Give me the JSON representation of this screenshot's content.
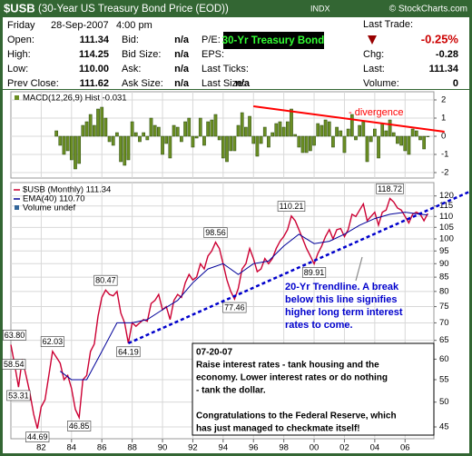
{
  "header": {
    "symbol": "$USB",
    "name": "(30-Year US Treasury Bond Price (EOD))",
    "exchange": "INDX",
    "copyright": "© StockCharts.com"
  },
  "quote": {
    "day": "Friday",
    "date": "28-Sep-2007",
    "time": "4:00 pm",
    "columns": [
      [
        {
          "label": "Open:",
          "value": "111.34"
        },
        {
          "label": "High:",
          "value": "114.25"
        },
        {
          "label": "Low:",
          "value": "110.00"
        },
        {
          "label": "Prev Close:",
          "value": "111.62"
        }
      ],
      [
        {
          "label": "Bid:",
          "value": "n/a"
        },
        {
          "label": "Bid Size:",
          "value": "n/a"
        },
        {
          "label": "Ask:",
          "value": "n/a"
        },
        {
          "label": "Ask Size:",
          "value": "n/a"
        }
      ],
      [
        {
          "label": "P/E:"
        },
        {
          "label": "EPS:"
        },
        {
          "label": "Last Ticks:"
        },
        {
          "label": "Last Size:",
          "value": "n/a"
        }
      ]
    ],
    "badge": "30-Yr Treasury Bond",
    "last_trade": "Last Trade:",
    "change_pct": "-0.25%",
    "right": [
      {
        "label": "Chg:",
        "value": "-0.28"
      },
      {
        "label": "Last:",
        "value": "111.34"
      },
      {
        "label": "Volume:",
        "value": "0"
      }
    ]
  },
  "chart_data": [
    {
      "type": "bar",
      "title": "MACD(12,26,9) Hist -0.031",
      "color": "#6b8e23",
      "x": [
        1983,
        1983.25,
        1983.5,
        1983.75,
        1984,
        1984.25,
        1984.5,
        1984.75,
        1985,
        1985.25,
        1985.5,
        1985.75,
        1986,
        1986.25,
        1986.5,
        1986.75,
        1987,
        1987.25,
        1987.5,
        1987.75,
        1988,
        1988.25,
        1988.5,
        1988.75,
        1989,
        1989.25,
        1989.5,
        1989.75,
        1990,
        1990.25,
        1990.5,
        1990.75,
        1991,
        1991.25,
        1991.5,
        1991.75,
        1992,
        1992.25,
        1992.5,
        1992.75,
        1993,
        1993.25,
        1993.5,
        1993.75,
        1994,
        1994.25,
        1994.5,
        1994.75,
        1995,
        1995.25,
        1995.5,
        1995.75,
        1996,
        1996.25,
        1996.5,
        1996.75,
        1997,
        1997.25,
        1997.5,
        1997.75,
        1998,
        1998.25,
        1998.5,
        1998.75,
        1999,
        1999.25,
        1999.5,
        1999.75,
        2000,
        2000.25,
        2000.5,
        2000.75,
        2001,
        2001.25,
        2001.5,
        2001.75,
        2002,
        2002.25,
        2002.5,
        2002.75,
        2003,
        2003.25,
        2003.5,
        2003.75,
        2004,
        2004.25,
        2004.5,
        2004.75,
        2005,
        2005.25,
        2005.5,
        2005.75,
        2006,
        2006.25,
        2006.5,
        2006.75,
        2007,
        2007.25,
        2007.5
      ],
      "values": [
        0.3,
        -0.5,
        -1.0,
        -0.8,
        -1.3,
        -1.8,
        -1.5,
        0.6,
        0.8,
        1.2,
        0.6,
        1.5,
        1.6,
        1.0,
        -0.3,
        -0.5,
        0.2,
        -1.4,
        -1.6,
        -1.3,
        0.8,
        0.2,
        -0.3,
        0.2,
        -0.2,
        1.0,
        0.6,
        0.5,
        -1.0,
        -0.4,
        -1.2,
        0.6,
        0.5,
        -0.3,
        0.8,
        1.0,
        -0.6,
        -0.1,
        1.0,
        -0.5,
        0.8,
        0.9,
        1.2,
        -0.2,
        -1.2,
        -1.4,
        -0.8,
        -0.8,
        0.6,
        1.3,
        0.5,
        1.1,
        -0.4,
        -1.1,
        -0.4,
        0.5,
        -0.6,
        0.2,
        0.7,
        0.8,
        0.5,
        0.8,
        1.5,
        0.1,
        -0.6,
        -0.9,
        -0.9,
        -0.8,
        -0.5,
        0.7,
        0.6,
        0.9,
        0.8,
        -0.6,
        0.5,
        0.3,
        -0.9,
        0.4,
        1.2,
        -0.2,
        0.6,
        0.8,
        -1.4,
        -0.3,
        0.4,
        -1.2,
        0.7,
        0.3,
        0.9,
        0.2,
        -0.4,
        -0.5,
        -0.8,
        -1.0,
        0.4,
        0.3,
        -0.2,
        -0.7,
        -0.031
      ],
      "xlim": [
        1980,
        2007.9
      ],
      "ylim": [
        -2.3,
        2.45
      ],
      "yticks": [
        2,
        1,
        0,
        -1,
        -2
      ],
      "grid": true,
      "trendline": {
        "x": [
          1996,
          2008.6
        ],
        "values": [
          1.65,
          0.25
        ],
        "color": "#ff0000",
        "label": "- divergence"
      }
    },
    {
      "type": "line",
      "log_scale": true,
      "grid": true,
      "legend_extra": "Volume undef",
      "x": [
        1980,
        1980.25,
        1980.5,
        1980.75,
        1981,
        1981.25,
        1981.5,
        1981.75,
        1982,
        1982.25,
        1982.5,
        1982.75,
        1983,
        1983.25,
        1983.5,
        1983.75,
        1984,
        1984.25,
        1984.5,
        1984.75,
        1985,
        1985.25,
        1985.5,
        1985.75,
        1986,
        1986.25,
        1986.5,
        1986.75,
        1987,
        1987.25,
        1987.5,
        1987.75,
        1988,
        1988.25,
        1988.5,
        1988.75,
        1989,
        1989.25,
        1989.5,
        1989.75,
        1990,
        1990.25,
        1990.5,
        1990.75,
        1991,
        1991.25,
        1991.5,
        1991.75,
        1992,
        1992.25,
        1992.5,
        1992.75,
        1993,
        1993.25,
        1993.5,
        1993.75,
        1994,
        1994.25,
        1994.5,
        1994.75,
        1995,
        1995.25,
        1995.5,
        1995.75,
        1996,
        1996.25,
        1996.5,
        1996.75,
        1997,
        1997.25,
        1997.5,
        1997.75,
        1998,
        1998.25,
        1998.5,
        1998.75,
        1999,
        1999.25,
        1999.5,
        1999.75,
        2000,
        2000.25,
        2000.5,
        2000.75,
        2001,
        2001.25,
        2001.5,
        2001.75,
        2002,
        2002.25,
        2002.5,
        2002.75,
        2003,
        2003.25,
        2003.5,
        2003.75,
        2004,
        2004.25,
        2004.5,
        2004.75,
        2005,
        2005.25,
        2005.5,
        2005.75,
        2006,
        2006.25,
        2006.5,
        2006.75,
        2007,
        2007.25,
        2007.5
      ],
      "series": [
        {
          "name": "$USB (Monthly) 111.34",
          "color": "#cc0033",
          "values": [
            63.8,
            58.54,
            53.31,
            60.0,
            56.0,
            52.0,
            47.5,
            44.69,
            49.0,
            50.5,
            56.0,
            62.03,
            60.5,
            59.0,
            55.0,
            56.0,
            53.0,
            48.5,
            46.85,
            55.0,
            56.0,
            62.0,
            64.0,
            72.0,
            78.0,
            80.47,
            79.0,
            78.5,
            80.0,
            73.0,
            70.0,
            64.19,
            70,
            69,
            70,
            71,
            70.5,
            76,
            77,
            79,
            74,
            75,
            71,
            77,
            79,
            78,
            83,
            86,
            84,
            85,
            90,
            88,
            93,
            95,
            98.56,
            96,
            90,
            84,
            80,
            77.46,
            81,
            88,
            90,
            96,
            92,
            87,
            88,
            92,
            90,
            92,
            96,
            99,
            101,
            104,
            110.21,
            108,
            104,
            100,
            96,
            93,
            89.91,
            94,
            97,
            101,
            104,
            100,
            104,
            104.5,
            101,
            104,
            111,
            110,
            113,
            116,
            108,
            110,
            112,
            106,
            112,
            113,
            118.72,
            117,
            114,
            113,
            110,
            107,
            111,
            112,
            111,
            108,
            111.34
          ],
          "value_labels": [
            "63.80",
            "58.54",
            "53.31",
            null,
            null,
            null,
            null,
            "44.69",
            null,
            null,
            null,
            "62.03",
            null,
            null,
            null,
            null,
            null,
            null,
            "46.85",
            null,
            null,
            null,
            null,
            null,
            null,
            "80.47",
            null,
            null,
            null,
            null,
            null,
            "64.19",
            null,
            null,
            null,
            null,
            null,
            null,
            null,
            null,
            null,
            null,
            null,
            null,
            null,
            null,
            null,
            null,
            null,
            null,
            null,
            null,
            null,
            null,
            "98.56",
            null,
            null,
            null,
            null,
            "77.46",
            null,
            null,
            null,
            null,
            null,
            null,
            null,
            null,
            null,
            null,
            null,
            null,
            null,
            null,
            "110.21",
            null,
            null,
            null,
            null,
            null,
            "89.91",
            null,
            null,
            null,
            null,
            null,
            null,
            null,
            null,
            null,
            null,
            null,
            null,
            null,
            null,
            null,
            null,
            null,
            null,
            null,
            "118.72",
            null,
            null,
            null,
            null,
            null,
            null,
            null,
            null,
            null,
            null
          ]
        },
        {
          "name": "EMA(40) 110.70",
          "color": "#000099",
          "x": [
            1983.25,
            1984,
            1985,
            1986,
            1987,
            1988,
            1989,
            1990,
            1991,
            1992,
            1993,
            1994,
            1995,
            1996,
            1997,
            1998,
            1999,
            2000,
            2001,
            2002,
            2003,
            2004,
            2005,
            2006,
            2007,
            2007.5
          ],
          "values": [
            57,
            55,
            55,
            62,
            70,
            70,
            71,
            74,
            77,
            83,
            88,
            90,
            86,
            90,
            91,
            97,
            102,
            98,
            99,
            102,
            106,
            109,
            111,
            112,
            111,
            110.7
          ]
        }
      ],
      "xlim": [
        1980,
        2007.9
      ],
      "ylim": [
        42.8,
        127
      ],
      "yticks": [
        45,
        50,
        55,
        60,
        65,
        70,
        75,
        80,
        85,
        90,
        95,
        100,
        105,
        110,
        115,
        120
      ],
      "xticks": [
        {
          "value": 1982,
          "label": "82"
        },
        {
          "value": 1984,
          "label": "84"
        },
        {
          "value": 1986,
          "label": "86"
        },
        {
          "value": 1988,
          "label": "88"
        },
        {
          "value": 1990,
          "label": "90"
        },
        {
          "value": 1992,
          "label": "92"
        },
        {
          "value": 1994,
          "label": "94"
        },
        {
          "value": 1996,
          "label": "96"
        },
        {
          "value": 1998,
          "label": "98"
        },
        {
          "value": 2000,
          "label": "00"
        },
        {
          "value": 2002,
          "label": "02"
        },
        {
          "value": 2004,
          "label": "04"
        },
        {
          "value": 2006,
          "label": "06"
        }
      ],
      "trendline": {
        "x": [
          1987.75,
          2010.2
        ],
        "values": [
          64.19,
          122
        ],
        "color": "#0000cc"
      },
      "annotations": [
        {
          "color": "#0000cc",
          "lines": [
            "20-Yr Trendline.  A break",
            "below this line signifies",
            "higher long term interest",
            "rates to come."
          ]
        },
        {
          "paragraphs": [
            [
              "07-20-07",
              "Raise interest rates - tank housing and the",
              "economy.  Lower interest rates or do nothing",
              "- tank the dollar."
            ],
            [
              "Congratulations to the Federal Reserve, which",
              "has just managed to checkmate itself!"
            ]
          ]
        }
      ]
    }
  ]
}
